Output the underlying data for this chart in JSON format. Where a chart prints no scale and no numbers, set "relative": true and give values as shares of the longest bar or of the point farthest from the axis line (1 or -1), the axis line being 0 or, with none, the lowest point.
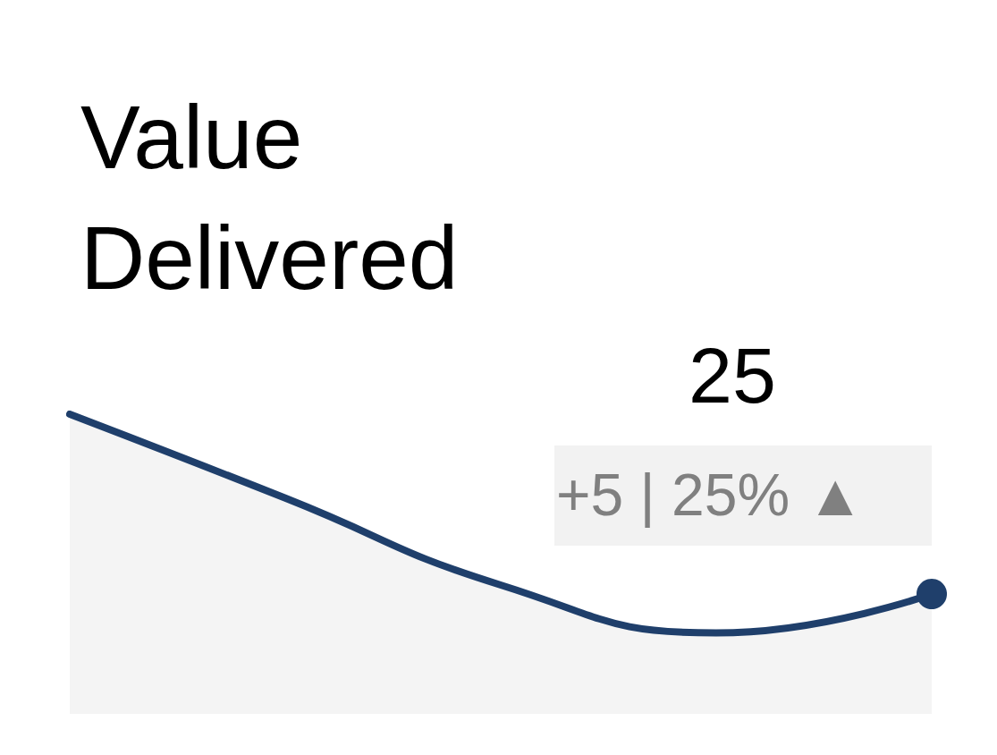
{
  "chart_data": {
    "type": "area",
    "title": "Value Delivered",
    "relative": true,
    "categories": [
      null,
      null,
      null,
      null,
      null
    ],
    "series": [
      {
        "color": "#1f3f6b",
        "values": [
          1,
          0.72,
          0.43,
          0.27,
          0.4
        ]
      }
    ],
    "grid": false,
    "annotations": [
      "25",
      "+5 | 25% ▲"
    ]
  }
}
